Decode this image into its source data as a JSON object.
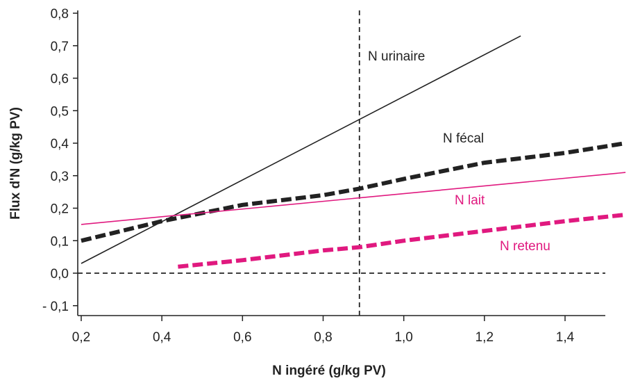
{
  "chart_data": {
    "type": "line",
    "title": "",
    "xlabel": "N ingéré (g/kg PV)",
    "ylabel": "Flux d'N (g/kg PV)",
    "xlim": [
      0.2,
      1.55
    ],
    "ylim": [
      -0.13,
      0.8
    ],
    "x_ticks": [
      0.2,
      0.4,
      0.6,
      0.8,
      1.0,
      1.2,
      1.4
    ],
    "x_tick_labels": [
      "0,2",
      "0,4",
      "0,6",
      "0,8",
      "1,0",
      "1,2",
      "1,4"
    ],
    "y_ticks": [
      -0.1,
      0.0,
      0.1,
      0.2,
      0.3,
      0.4,
      0.5,
      0.6,
      0.7,
      0.8
    ],
    "y_tick_labels": [
      "- 0,1",
      "0,0",
      "0,1",
      "0,2",
      "0,3",
      "0,4",
      "0,5",
      "0,6",
      "0,7",
      "0,8"
    ],
    "reference_lines": [
      {
        "orientation": "vertical",
        "value": 0.89,
        "style": "dashed",
        "color": "#222222"
      },
      {
        "orientation": "horizontal",
        "value": 0.0,
        "style": "dashed",
        "color": "#222222"
      }
    ],
    "series": [
      {
        "name": "N urinaire",
        "color": "#222222",
        "style": "solid-thin",
        "x": [
          0.2,
          1.29
        ],
        "y": [
          0.03,
          0.73
        ]
      },
      {
        "name": "N fécal",
        "color": "#222222",
        "style": "dashed-thick",
        "x": [
          0.2,
          0.4,
          0.6,
          0.8,
          0.89,
          1.0,
          1.2,
          1.4,
          1.55
        ],
        "y": [
          0.1,
          0.16,
          0.21,
          0.24,
          0.26,
          0.29,
          0.34,
          0.37,
          0.4
        ]
      },
      {
        "name": "N lait",
        "color": "#e0197f",
        "style": "solid-thin",
        "x": [
          0.2,
          1.55
        ],
        "y": [
          0.15,
          0.31
        ]
      },
      {
        "name": "N retenu",
        "color": "#e0197f",
        "style": "dashed-thick",
        "x": [
          0.44,
          0.6,
          0.8,
          0.89,
          1.0,
          1.2,
          1.4,
          1.55
        ],
        "y": [
          0.02,
          0.04,
          0.07,
          0.08,
          0.1,
          0.13,
          0.16,
          0.18
        ]
      }
    ]
  }
}
